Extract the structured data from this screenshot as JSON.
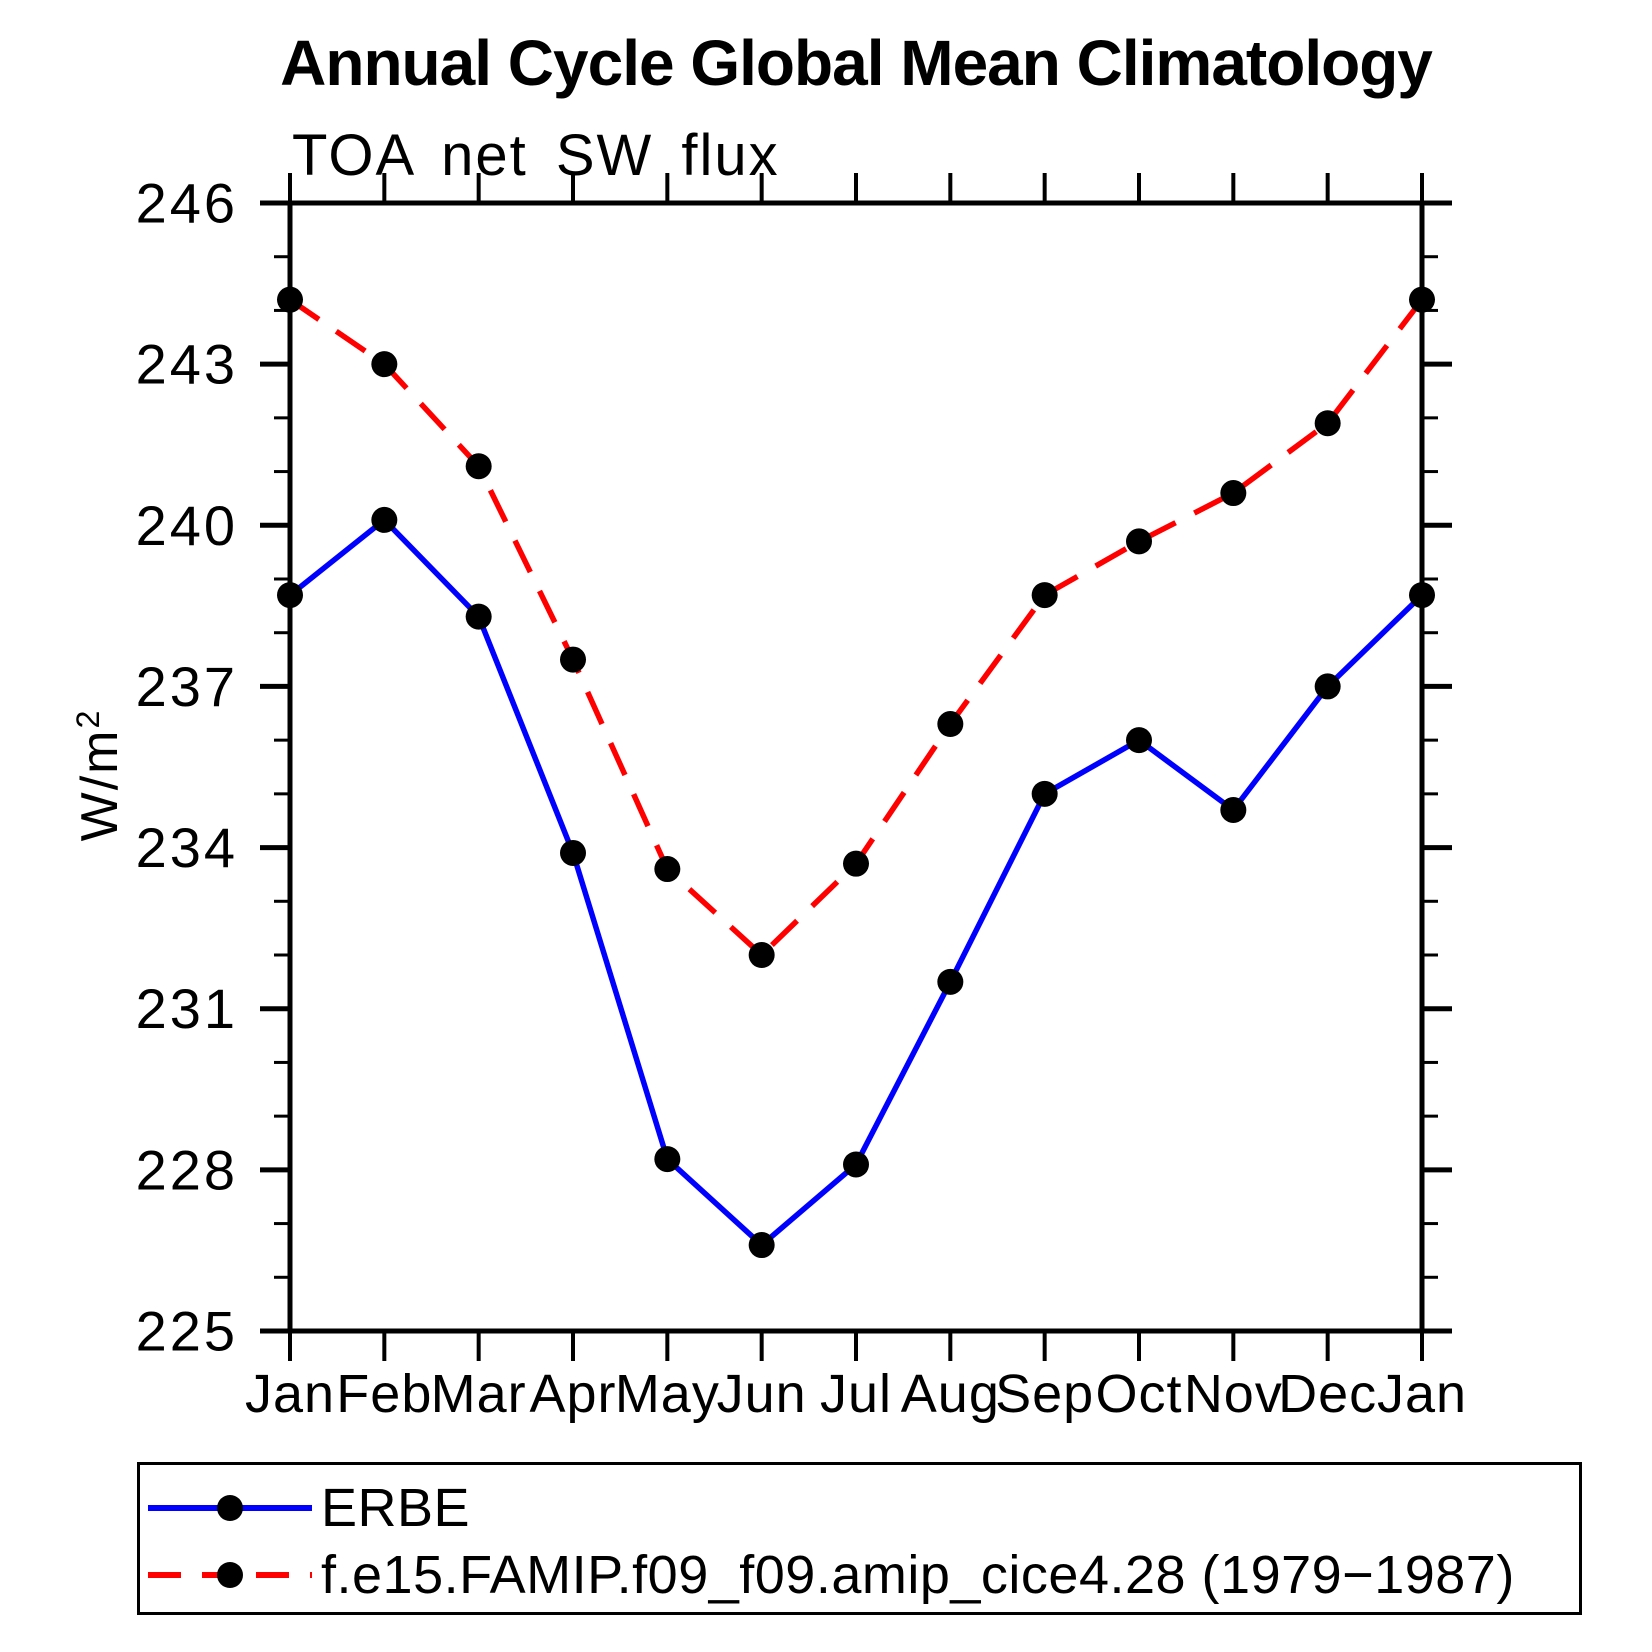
{
  "header": {
    "title": "Annual Cycle Global Mean Climatology"
  },
  "chart": {
    "subtitle": "TOA net SW flux"
  },
  "axis": {
    "ylabel_base": "W/m",
    "ylabel_exp": "2",
    "ylabel_full": "W/m²"
  },
  "legend": {
    "items": [
      {
        "label": "ERBE",
        "color": "#0000ff",
        "style": "solid"
      },
      {
        "label": "f.e15.FAMIP.f09_f09.amip_cice4.28 (1979−1987)",
        "color": "#ff0000",
        "style": "dashed"
      }
    ]
  },
  "colors": {
    "erbe": "#0000ff",
    "model": "#ff0000",
    "marker": "#000000",
    "axis": "#000000"
  },
  "chart_data": {
    "type": "line",
    "title": "Annual Cycle Global Mean Climatology",
    "subtitle": "TOA net SW flux",
    "ylabel": "W/m²",
    "categories": [
      "Jan",
      "Feb",
      "Mar",
      "Apr",
      "May",
      "Jun",
      "Jul",
      "Aug",
      "Sep",
      "Oct",
      "Nov",
      "Dec",
      "Jan"
    ],
    "series": [
      {
        "name": "ERBE",
        "color": "#0000ff",
        "style": "solid",
        "marker": "circle",
        "values": [
          238.7,
          240.1,
          238.3,
          233.9,
          228.2,
          226.6,
          228.1,
          231.5,
          235.0,
          236.0,
          234.7,
          237.0,
          238.7
        ]
      },
      {
        "name": "f.e15.FAMIP.f09_f09.amip_cice4.28 (1979−1987)",
        "color": "#ff0000",
        "style": "dashed",
        "marker": "circle",
        "values": [
          244.2,
          243.0,
          241.1,
          237.5,
          233.6,
          232.0,
          233.7,
          236.3,
          238.7,
          239.7,
          240.6,
          241.9,
          244.2
        ]
      }
    ],
    "ylim": [
      225,
      246
    ],
    "ytick_major_step": 3,
    "ytick_minor_step": 1,
    "grid": false,
    "legend_position": "bottom"
  }
}
